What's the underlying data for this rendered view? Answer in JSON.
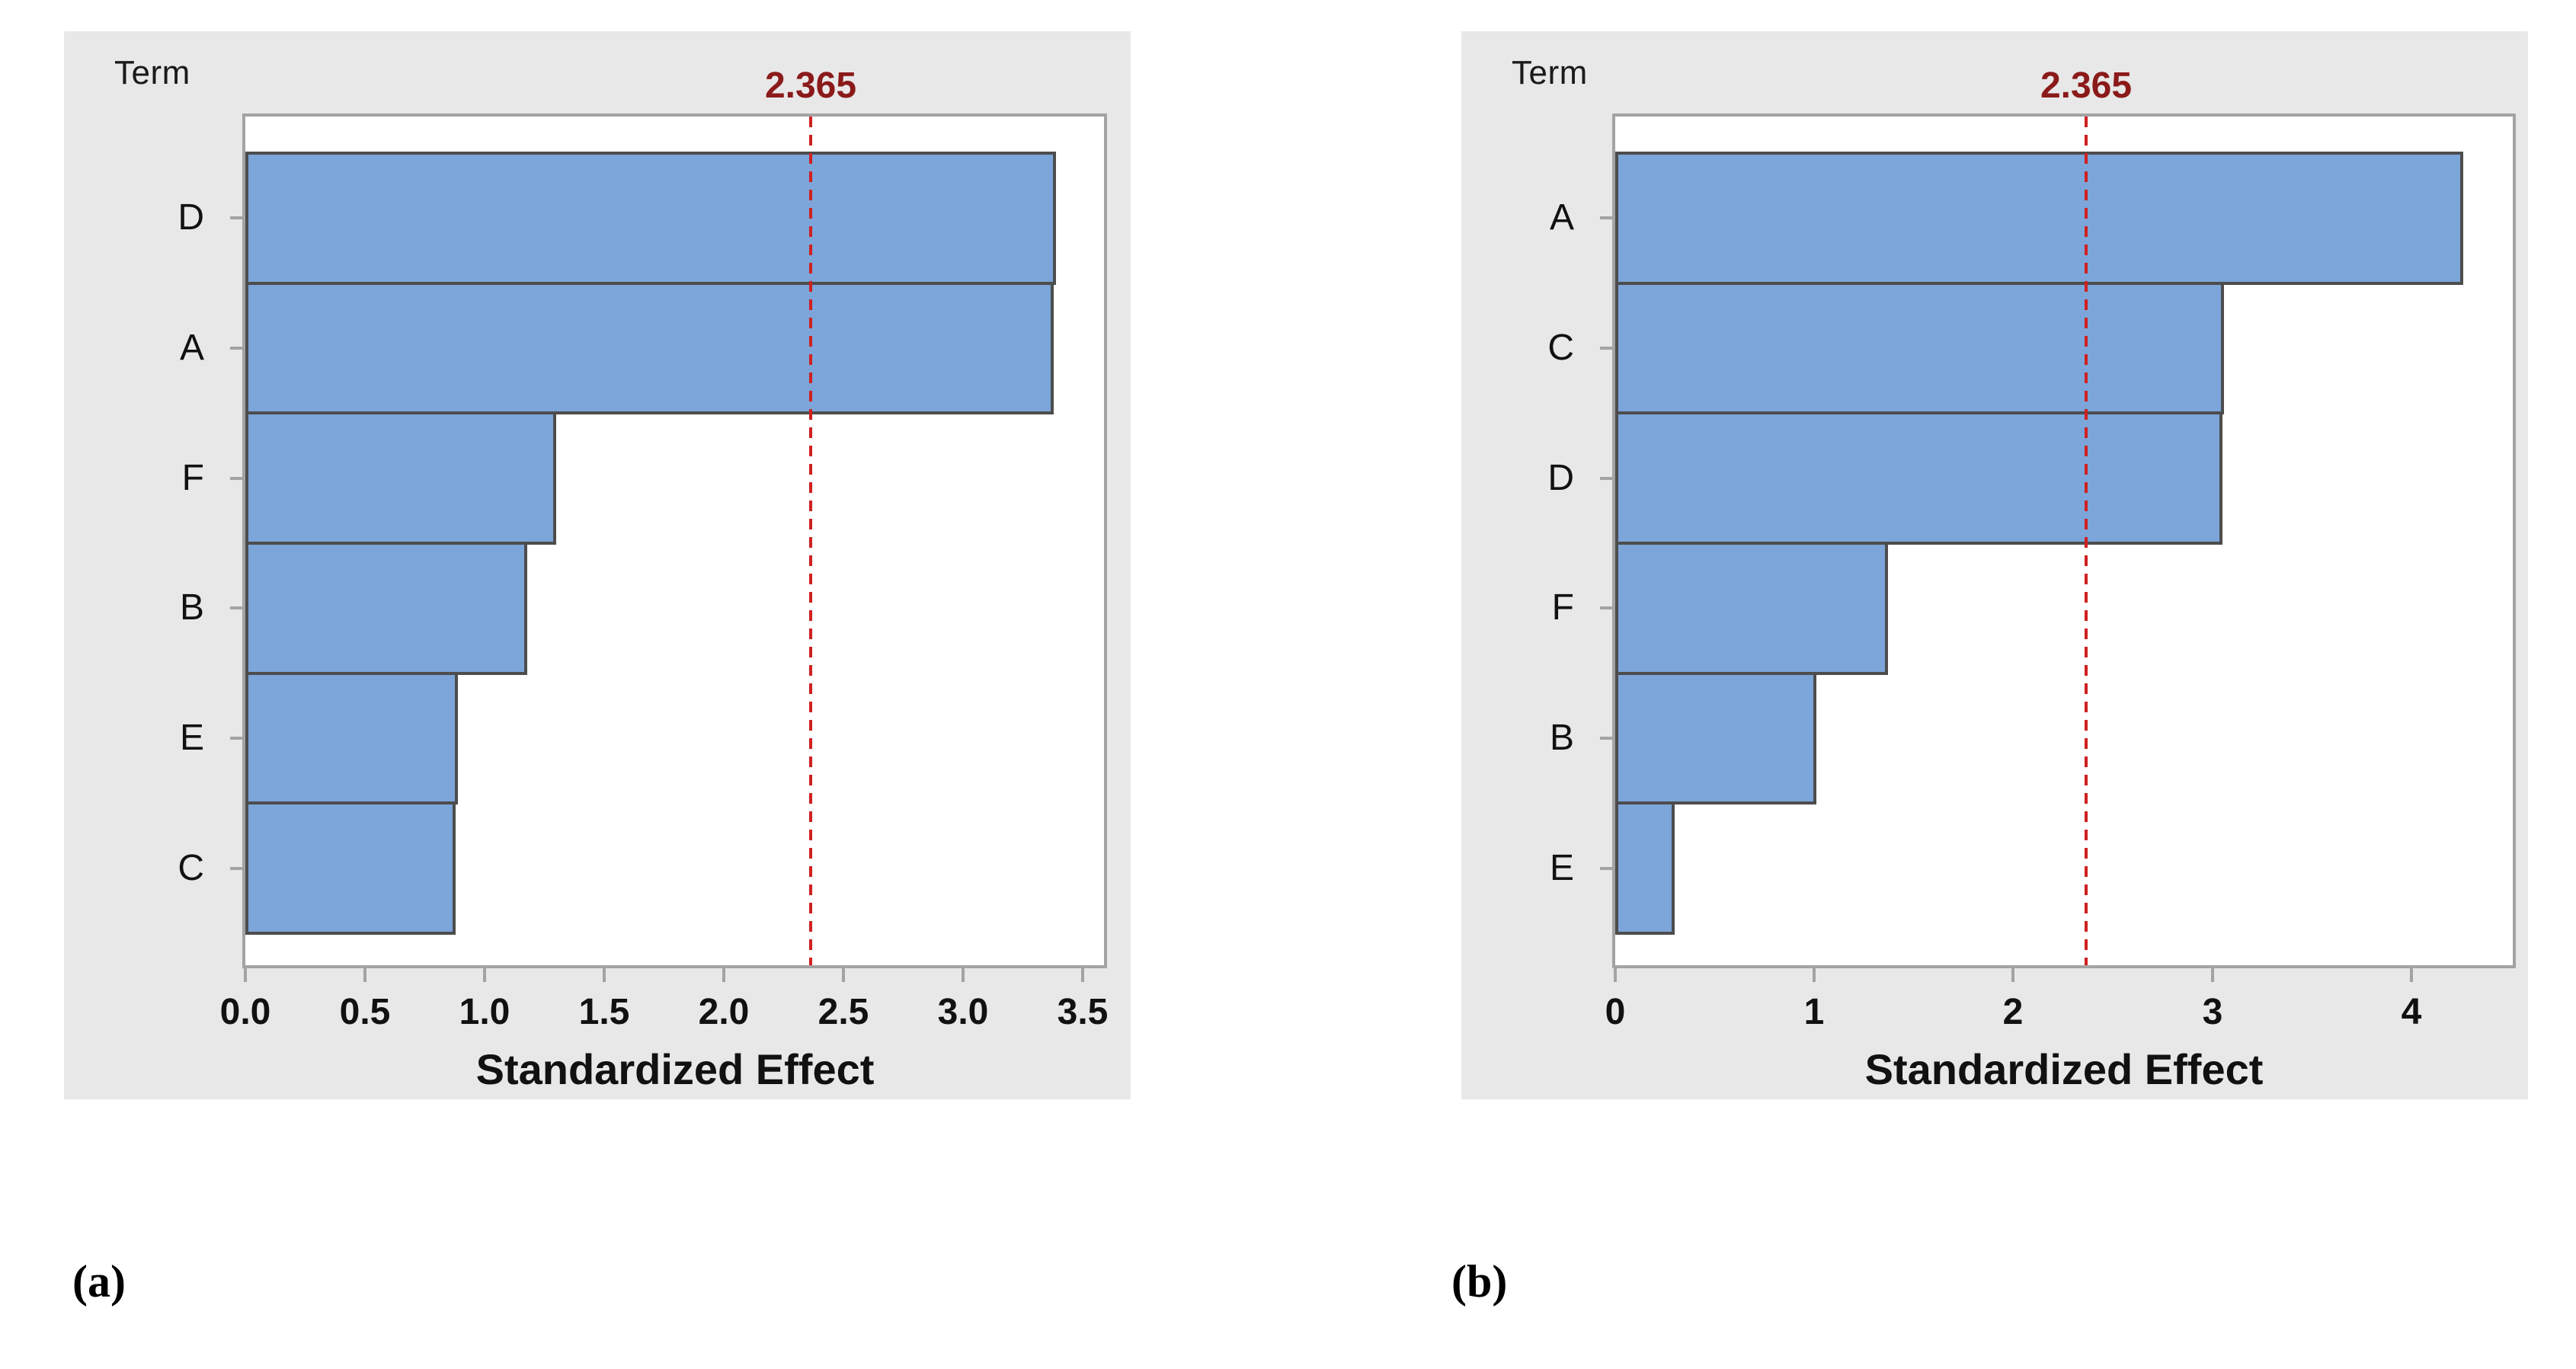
{
  "page": {
    "background_color": "#ffffff",
    "description_labels": {
      "left_caption": "(a)",
      "right_caption": "(b)"
    }
  },
  "colors": {
    "panel_background": "#e8e8e8",
    "plot_background": "#ffffff",
    "plot_border": "#a3a3a3",
    "tick_color": "#a3a3a3",
    "bar_fill": "#7ca5d9",
    "bar_border": "#4d4d4d",
    "reference_line": "#cf2020",
    "reference_label": "#8b1a1a",
    "text": "#111111"
  },
  "chart_data": [
    {
      "type": "bar",
      "orientation": "horizontal",
      "title": "",
      "ylabel": "Term",
      "xlabel": "Standardized Effect",
      "categories": [
        "D",
        "A",
        "F",
        "B",
        "E",
        "C"
      ],
      "values": [
        3.39,
        3.38,
        1.3,
        1.18,
        0.89,
        0.88
      ],
      "xlim": [
        0,
        3.59
      ],
      "xticks": [
        0,
        0.5,
        1,
        1.5,
        2,
        2.5,
        3,
        3.5
      ],
      "xtick_labels": [
        "0.0",
        "0.5",
        "1.0",
        "1.5",
        "2.0",
        "2.5",
        "3.0",
        "3.5"
      ],
      "reference_line": {
        "value": 2.365,
        "label": "2.365"
      },
      "grid": false,
      "legend": "none",
      "caption": "(a)"
    },
    {
      "type": "bar",
      "orientation": "horizontal",
      "title": "",
      "ylabel": "Term",
      "xlabel": "Standardized Effect",
      "categories": [
        "A",
        "C",
        "D",
        "F",
        "B",
        "E"
      ],
      "values": [
        4.26,
        3.06,
        3.05,
        1.37,
        1.01,
        0.3
      ],
      "xlim": [
        0,
        4.51
      ],
      "xticks": [
        0,
        1,
        2,
        3,
        4
      ],
      "xtick_labels": [
        "0",
        "1",
        "2",
        "3",
        "4"
      ],
      "reference_line": {
        "value": 2.365,
        "label": "2.365"
      },
      "grid": false,
      "legend": "none",
      "caption": "(b)"
    }
  ]
}
